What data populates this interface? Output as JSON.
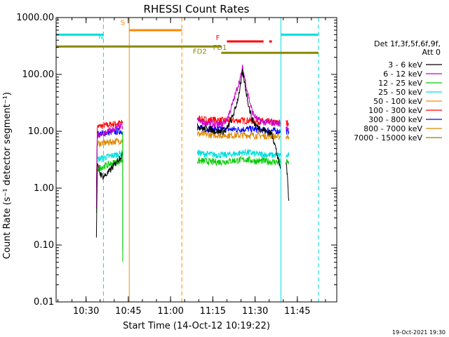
{
  "chart_data": {
    "type": "line",
    "title": "RHESSI Count Rates",
    "xlabel": "Start Time (14-Oct-12 10:19:22)",
    "ylabel": "Count Rate (s⁻¹ detector segment⁻¹)",
    "yscale": "log",
    "xlim": [
      "10:19:22",
      "11:59:00"
    ],
    "ylim": [
      0.01,
      1000
    ],
    "x_ticks": [
      "10:30",
      "10:45",
      "11:00",
      "11:15",
      "11:30",
      "11:45"
    ],
    "y_ticks": [
      "0.01",
      "0.10",
      "1.00",
      "10.00",
      "100.00",
      "1000.00"
    ],
    "legend": {
      "placement": "right",
      "header_line1": "Det 1f,3f,5f,6f,9f,",
      "header_line2": "Att 0"
    },
    "series": [
      {
        "name": "3 - 6 keV",
        "color": "#000000",
        "segments": [
          {
            "x": [
              "10:33:40",
              "10:34:00",
              "10:35:00",
              "10:36:00",
              "10:37:00",
              "10:38:00",
              "10:39:00",
              "10:40:00",
              "10:41:00",
              "10:42:00",
              "10:43:00"
            ],
            "y": [
              0.15,
              2.5,
              1.8,
              1.6,
              1.7,
              1.9,
              2.2,
              2.5,
              3.0,
              3.5,
              3.8
            ]
          },
          {
            "x": [
              "11:09:30",
              "11:10:00",
              "11:12:00",
              "11:14:00",
              "11:16:00",
              "11:18:00",
              "11:19:00",
              "11:20:00",
              "11:21:00",
              "11:22:00",
              "11:23:00",
              "11:24:00",
              "11:25:00",
              "11:25:30",
              "11:26:00",
              "11:27:00",
              "11:28:00",
              "11:29:00",
              "11:30:00",
              "11:31:00",
              "11:32:00",
              "11:34:00",
              "11:36:00",
              "11:37:00",
              "11:38:00",
              "11:39:00"
            ],
            "y": [
              14,
              12,
              11,
              11,
              10,
              10,
              10,
              11,
              14,
              18,
              25,
              40,
              70,
              110,
              85,
              45,
              25,
              16,
              13,
              12,
              11,
              10,
              9,
              6,
              3.5,
              2.2
            ]
          },
          {
            "x": [
              "11:41:00",
              "11:41:20",
              "11:42:00"
            ],
            "y": [
              3.0,
              2.0,
              0.6
            ]
          }
        ]
      },
      {
        "name": "6 - 12 keV",
        "color": "#cc00cc",
        "segments": [
          {
            "x": [
              "10:33:40",
              "10:34:00",
              "10:36:00",
              "10:38:00",
              "10:40:00",
              "10:42:00",
              "10:43:00"
            ],
            "y": [
              0.4,
              8,
              9,
              10,
              11,
              12,
              12
            ]
          },
          {
            "x": [
              "11:09:30",
              "11:10:00",
              "11:12:00",
              "11:14:00",
              "11:16:00",
              "11:18:00",
              "11:19:00",
              "11:20:00",
              "11:21:00",
              "11:22:00",
              "11:23:00",
              "11:24:00",
              "11:25:00",
              "11:25:30",
              "11:26:00",
              "11:27:00",
              "11:28:00",
              "11:29:00",
              "11:30:00",
              "11:31:00",
              "11:32:00",
              "11:34:00",
              "11:36:00",
              "11:38:00",
              "11:39:00"
            ],
            "y": [
              16,
              15,
              14,
              14,
              13,
              13,
              14,
              16,
              22,
              30,
              45,
              65,
              95,
              130,
              105,
              60,
              35,
              22,
              18,
              16,
              15,
              14,
              14,
              14,
              13
            ]
          },
          {
            "x": [
              "11:41:00",
              "11:42:00"
            ],
            "y": [
              12,
              11
            ]
          }
        ]
      },
      {
        "name": "12 - 25 keV",
        "color": "#00cc00",
        "segments": [
          {
            "x": [
              "10:33:40",
              "10:34:00",
              "10:36:00",
              "10:38:00",
              "10:40:00",
              "10:42:00",
              "10:43:00"
            ],
            "y": [
              0.4,
              2.2,
              2.4,
              2.6,
              2.8,
              3.0,
              3.1
            ]
          },
          {
            "x": [
              "11:09:30",
              "11:12:00",
              "11:15:00",
              "11:18:00",
              "11:21:00",
              "11:24:00",
              "11:27:00",
              "11:30:00",
              "11:33:00",
              "11:36:00",
              "11:39:00"
            ],
            "y": [
              3.0,
              3.0,
              2.9,
              2.9,
              3.0,
              3.1,
              3.2,
              3.0,
              3.0,
              2.9,
              2.9
            ]
          },
          {
            "x": [
              "11:41:00",
              "11:42:00"
            ],
            "y": [
              2.8,
              2.8
            ]
          }
        ]
      },
      {
        "name": "25 - 50 keV",
        "color": "#00dddd",
        "segments": [
          {
            "x": [
              "10:33:40",
              "10:34:00",
              "10:36:00",
              "10:38:00",
              "10:40:00",
              "10:42:00",
              "10:43:00"
            ],
            "y": [
              0.5,
              3.2,
              3.4,
              3.6,
              3.8,
              4.0,
              4.1
            ]
          },
          {
            "x": [
              "11:09:30",
              "11:12:00",
              "11:15:00",
              "11:18:00",
              "11:21:00",
              "11:24:00",
              "11:27:00",
              "11:30:00",
              "11:33:00",
              "11:36:00",
              "11:39:00"
            ],
            "y": [
              4.2,
              4.0,
              3.9,
              3.8,
              3.9,
              4.1,
              4.3,
              4.0,
              3.9,
              3.8,
              3.8
            ]
          },
          {
            "x": [
              "11:41:00",
              "11:42:00"
            ],
            "y": [
              3.7,
              3.7
            ]
          }
        ]
      },
      {
        "name": "50 - 100 keV",
        "color": "#ff8800",
        "segments": [
          {
            "x": [
              "10:33:40",
              "10:34:00",
              "10:36:00",
              "10:38:00",
              "10:40:00",
              "10:42:00",
              "10:43:00"
            ],
            "y": [
              0.6,
              5.0,
              5.2,
              5.4,
              5.6,
              5.8,
              5.9
            ]
          },
          {
            "x": [
              "11:09:30",
              "11:12:00",
              "11:15:00",
              "11:18:00",
              "11:21:00",
              "11:24:00",
              "11:27:00",
              "11:30:00",
              "11:33:00",
              "11:36:00",
              "11:39:00"
            ],
            "y": [
              6.6,
              6.4,
              6.3,
              6.2,
              6.3,
              6.4,
              6.5,
              6.3,
              6.2,
              6.1,
              6.0
            ]
          },
          {
            "x": [
              "11:41:00",
              "11:42:00"
            ],
            "y": [
              5.8,
              5.8
            ]
          }
        ]
      },
      {
        "name": "100 - 300 keV",
        "color": "#ff0000",
        "segments": [
          {
            "x": [
              "10:33:40",
              "10:34:00",
              "10:36:00",
              "10:38:00",
              "10:40:00",
              "10:42:00",
              "10:43:00"
            ],
            "y": [
              1.0,
              12,
              12.5,
              13,
              13.5,
              14,
              14
            ]
          },
          {
            "x": [
              "11:09:30",
              "11:12:00",
              "11:15:00",
              "11:18:00",
              "11:21:00",
              "11:24:00",
              "11:27:00",
              "11:30:00",
              "11:33:00",
              "11:36:00",
              "11:39:00"
            ],
            "y": [
              17,
              16,
              16,
              15.5,
              15.5,
              15.5,
              15.5,
              15,
              15,
              14.5,
              14
            ]
          },
          {
            "x": [
              "11:41:00",
              "11:42:00"
            ],
            "y": [
              14,
              14
            ]
          }
        ]
      },
      {
        "name": "300 - 800 keV",
        "color": "#0000ff",
        "segments": [
          {
            "x": [
              "10:33:40",
              "10:34:00",
              "10:36:00",
              "10:38:00",
              "10:40:00",
              "10:42:00",
              "10:43:00"
            ],
            "y": [
              0.8,
              9,
              9.2,
              9.5,
              9.8,
              10,
              10
            ]
          },
          {
            "x": [
              "11:09:30",
              "11:12:00",
              "11:15:00",
              "11:18:00",
              "11:21:00",
              "11:24:00",
              "11:27:00",
              "11:30:00",
              "11:33:00",
              "11:36:00",
              "11:39:00"
            ],
            "y": [
              11.5,
              11,
              11,
              10.8,
              10.8,
              10.8,
              11,
              10.8,
              10.5,
              10.3,
              10
            ]
          },
          {
            "x": [
              "11:41:00",
              "11:42:00"
            ],
            "y": [
              10,
              10
            ]
          }
        ]
      },
      {
        "name": "800 - 7000 keV",
        "color": "#dd8800",
        "segments": [
          {
            "x": [
              "10:33:40",
              "10:34:00",
              "10:36:00",
              "10:38:00",
              "10:40:00",
              "10:42:00",
              "10:43:00"
            ],
            "y": [
              0.7,
              6,
              6.2,
              6.4,
              6.6,
              6.8,
              7
            ]
          },
          {
            "x": [
              "11:09:30",
              "11:12:00",
              "11:15:00",
              "11:18:00",
              "11:21:00",
              "11:24:00",
              "11:27:00",
              "11:30:00",
              "11:33:00",
              "11:36:00",
              "11:39:00"
            ],
            "y": [
              9,
              8.8,
              8.6,
              8.5,
              8.5,
              8.5,
              8.6,
              8.4,
              8.3,
              8.2,
              8
            ]
          },
          {
            "x": [
              "11:41:00",
              "11:42:00"
            ],
            "y": [
              8,
              8
            ]
          }
        ]
      },
      {
        "name": "7000 - 15000 keV",
        "color": "#888800",
        "segments": []
      }
    ],
    "state_bars": [
      {
        "label": "N",
        "color": "#00dddd",
        "y": 500,
        "ranges": [
          [
            "10:19:22",
            "10:36:10"
          ],
          [
            "11:39:10",
            "11:52:30"
          ]
        ],
        "label_at": "10:36:10",
        "label_y": 420
      },
      {
        "label": "S",
        "color": "#ff8800",
        "y": 600,
        "ranges": [
          [
            "10:45:20",
            "11:04:00"
          ]
        ],
        "label_at": "10:43:50",
        "label_y": 740
      },
      {
        "label": "F",
        "color": "#ff0000",
        "y": 380,
        "ranges": [
          [
            "11:20:00",
            "11:33:00"
          ],
          [
            "11:35:00",
            "11:36:00"
          ]
        ],
        "label_at": "11:17:30",
        "label_y": 400
      },
      {
        "label": "FD1",
        "color": "#888800",
        "y": 310,
        "ranges": [
          [
            "10:19:22",
            "11:18:00"
          ]
        ],
        "label_at": "11:20:00",
        "label_y": 270
      },
      {
        "label": "FD2",
        "color": "#888800",
        "y": 240,
        "ranges": [
          [
            "11:18:00",
            "11:52:30"
          ]
        ],
        "label_at": "11:12:50",
        "label_y": 230
      }
    ],
    "vlines": [
      {
        "x": "10:19:22",
        "color": "#00dddd",
        "style": "solid"
      },
      {
        "x": "10:36:10",
        "color": "#00dddd",
        "style": "dashed"
      },
      {
        "x": "10:45:20",
        "color": "#ff8800",
        "style": "solid"
      },
      {
        "x": "11:04:00",
        "color": "#ff8800",
        "style": "dashed"
      },
      {
        "x": "11:39:10",
        "color": "#00dddd",
        "style": "solid"
      },
      {
        "x": "11:52:30",
        "color": "#00dddd",
        "style": "dashed"
      }
    ],
    "spikes": [
      {
        "x": "10:43:00",
        "y": 0.08,
        "color": "#00cc00"
      },
      {
        "x": "10:43:00",
        "y": 0.05,
        "color": "#00cc00"
      }
    ],
    "timestamp": "19-Oct-2021 19:30",
    "grid": false
  }
}
